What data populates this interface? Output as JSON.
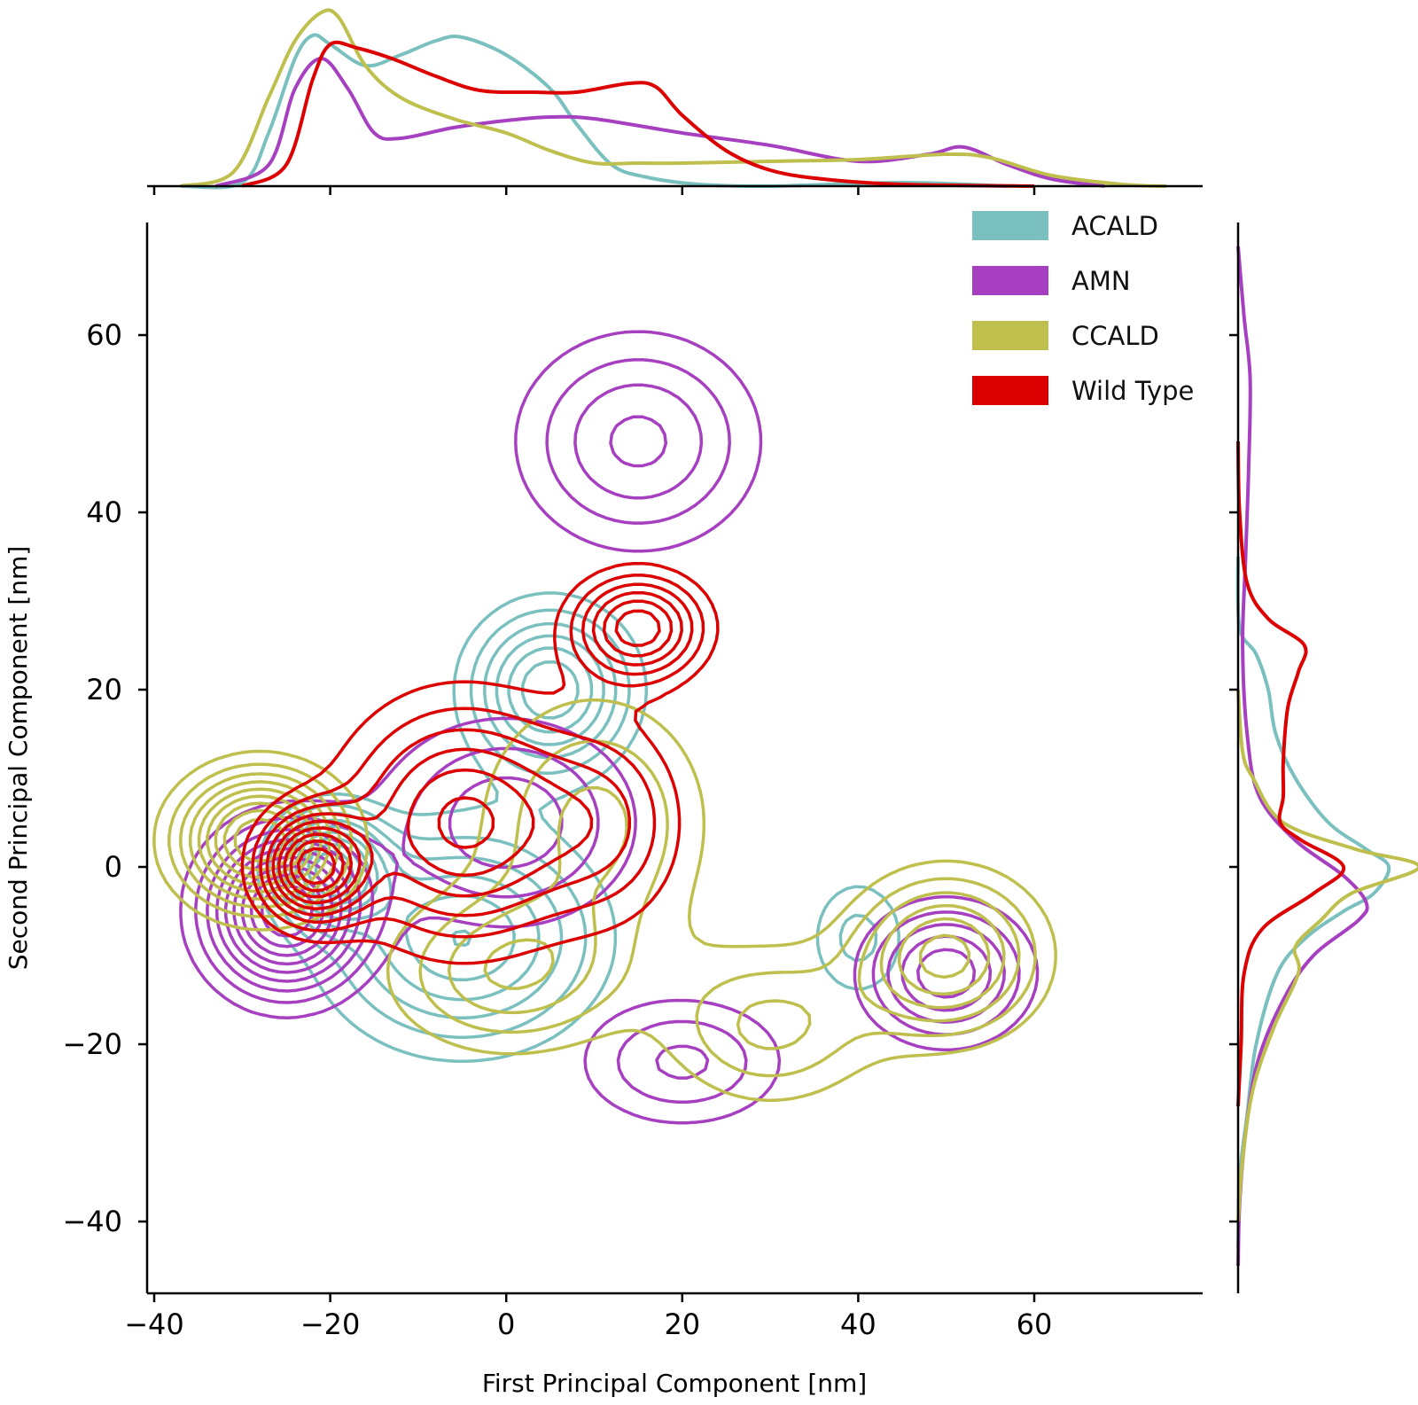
{
  "chart_data": {
    "type": "kde",
    "xlabel": "First Principal Component [nm]",
    "ylabel": "Second Principal Component [nm]",
    "xlim": [
      -41,
      79
    ],
    "ylim": [
      -48,
      73
    ],
    "xticks": [
      -40,
      -20,
      0,
      20,
      40,
      60
    ],
    "yticks": [
      -40,
      -20,
      0,
      20,
      40,
      60
    ],
    "xtick_labels": [
      "−40",
      "−20",
      "0",
      "20",
      "40",
      "60"
    ],
    "ytick_labels": [
      "−40",
      "−20",
      "0",
      "20",
      "40",
      "60"
    ],
    "legend_position": "top-right",
    "series": [
      {
        "name": "ACALD",
        "color": "#79c0bf",
        "modes": [
          {
            "x": -20,
            "y": 0,
            "sx": 4,
            "sy": 4,
            "w": 1.0
          },
          {
            "x": 5,
            "y": 20,
            "sx": 6,
            "sy": 6,
            "w": 0.8
          },
          {
            "x": -5,
            "y": -8,
            "sx": 10,
            "sy": 8,
            "w": 0.7
          },
          {
            "x": 40,
            "y": -8,
            "sx": 4,
            "sy": 5,
            "w": 0.3
          }
        ],
        "marginal_x": [
          [
            -37,
            0
          ],
          [
            -30,
            0.02
          ],
          [
            -27,
            0.3
          ],
          [
            -24,
            0.72
          ],
          [
            -22,
            0.85
          ],
          [
            -20,
            0.8
          ],
          [
            -16,
            0.68
          ],
          [
            -12,
            0.74
          ],
          [
            -8,
            0.82
          ],
          [
            -5,
            0.84
          ],
          [
            0,
            0.74
          ],
          [
            5,
            0.55
          ],
          [
            8,
            0.35
          ],
          [
            12,
            0.12
          ],
          [
            16,
            0.05
          ],
          [
            22,
            0.01
          ],
          [
            30,
            0
          ],
          [
            45,
            0.02
          ],
          [
            57,
            0
          ]
        ],
        "marginal_y": [
          [
            -43,
            0
          ],
          [
            -35,
            0.01
          ],
          [
            -28,
            0.06
          ],
          [
            -20,
            0.12
          ],
          [
            -12,
            0.26
          ],
          [
            -8,
            0.45
          ],
          [
            -5,
            0.7
          ],
          [
            -3,
            0.9
          ],
          [
            0,
            1.0
          ],
          [
            2,
            0.85
          ],
          [
            5,
            0.6
          ],
          [
            10,
            0.38
          ],
          [
            15,
            0.25
          ],
          [
            20,
            0.2
          ],
          [
            24,
            0.12
          ],
          [
            27,
            0.01
          ],
          [
            35,
            0
          ]
        ]
      },
      {
        "name": "AMN",
        "color": "#a640c0",
        "modes": [
          {
            "x": -25,
            "y": -5,
            "sx": 6,
            "sy": 6,
            "w": 1.0
          },
          {
            "x": 50,
            "y": -12,
            "sx": 6,
            "sy": 5,
            "w": 0.6
          },
          {
            "x": 15,
            "y": 48,
            "sx": 9,
            "sy": 8,
            "w": 0.45
          },
          {
            "x": 20,
            "y": -22,
            "sx": 8,
            "sy": 5,
            "w": 0.35
          },
          {
            "x": 0,
            "y": 5,
            "sx": 10,
            "sy": 8,
            "w": 0.4
          }
        ],
        "marginal_x": [
          [
            -33,
            0
          ],
          [
            -27,
            0.12
          ],
          [
            -24,
            0.55
          ],
          [
            -21,
            0.72
          ],
          [
            -18,
            0.55
          ],
          [
            -15,
            0.3
          ],
          [
            -12,
            0.27
          ],
          [
            -6,
            0.33
          ],
          [
            0,
            0.37
          ],
          [
            5,
            0.39
          ],
          [
            10,
            0.38
          ],
          [
            20,
            0.3
          ],
          [
            30,
            0.23
          ],
          [
            40,
            0.14
          ],
          [
            48,
            0.18
          ],
          [
            52,
            0.22
          ],
          [
            57,
            0.12
          ],
          [
            62,
            0.04
          ],
          [
            68,
            0
          ]
        ],
        "marginal_y": [
          [
            -45,
            0
          ],
          [
            -38,
            0.01
          ],
          [
            -30,
            0.05
          ],
          [
            -22,
            0.13
          ],
          [
            -15,
            0.3
          ],
          [
            -10,
            0.5
          ],
          [
            -6,
            0.8
          ],
          [
            -4,
            0.85
          ],
          [
            -1,
            0.7
          ],
          [
            3,
            0.38
          ],
          [
            8,
            0.14
          ],
          [
            15,
            0.06
          ],
          [
            25,
            0.03
          ],
          [
            35,
            0.05
          ],
          [
            45,
            0.07
          ],
          [
            55,
            0.08
          ],
          [
            62,
            0.04
          ],
          [
            70,
            0
          ]
        ]
      },
      {
        "name": "CCALD",
        "color": "#bfbf4d",
        "modes": [
          {
            "x": -28,
            "y": 3,
            "sx": 6,
            "sy": 5,
            "w": 1.0
          },
          {
            "x": 50,
            "y": -10,
            "sx": 7,
            "sy": 6,
            "w": 0.65
          },
          {
            "x": 10,
            "y": 5,
            "sx": 9,
            "sy": 10,
            "w": 0.35
          },
          {
            "x": 0,
            "y": -12,
            "sx": 9,
            "sy": 6,
            "w": 0.4
          },
          {
            "x": 30,
            "y": -18,
            "sx": 8,
            "sy": 6,
            "w": 0.35
          }
        ],
        "marginal_x": [
          [
            -37,
            0
          ],
          [
            -31,
            0.08
          ],
          [
            -27,
            0.5
          ],
          [
            -24,
            0.82
          ],
          [
            -21,
            0.98
          ],
          [
            -19,
            0.95
          ],
          [
            -16,
            0.68
          ],
          [
            -12,
            0.5
          ],
          [
            -6,
            0.38
          ],
          [
            0,
            0.3
          ],
          [
            5,
            0.2
          ],
          [
            10,
            0.13
          ],
          [
            15,
            0.13
          ],
          [
            20,
            0.13
          ],
          [
            30,
            0.14
          ],
          [
            40,
            0.15
          ],
          [
            50,
            0.18
          ],
          [
            55,
            0.16
          ],
          [
            62,
            0.06
          ],
          [
            70,
            0.01
          ],
          [
            75,
            0
          ]
        ],
        "marginal_y": [
          [
            -40,
            0
          ],
          [
            -33,
            0.03
          ],
          [
            -25,
            0.1
          ],
          [
            -18,
            0.24
          ],
          [
            -12,
            0.4
          ],
          [
            -9,
            0.38
          ],
          [
            -6,
            0.55
          ],
          [
            -3,
            0.75
          ],
          [
            0,
            1.2
          ],
          [
            2,
            0.78
          ],
          [
            5,
            0.3
          ],
          [
            10,
            0.1
          ],
          [
            13,
            0.03
          ],
          [
            20,
            0
          ]
        ]
      },
      {
        "name": "Wild Type",
        "color": "#dd0000",
        "modes": [
          {
            "x": -22,
            "y": 0,
            "sx": 4,
            "sy": 4,
            "w": 1.0
          },
          {
            "x": 15,
            "y": 27,
            "sx": 5,
            "sy": 4,
            "w": 0.75
          },
          {
            "x": -5,
            "y": 5,
            "sx": 9,
            "sy": 9,
            "w": 0.7
          },
          {
            "x": 12,
            "y": 5,
            "sx": 6,
            "sy": 8,
            "w": 0.3
          }
        ],
        "marginal_x": [
          [
            -30,
            0
          ],
          [
            -25,
            0.12
          ],
          [
            -22,
            0.6
          ],
          [
            -20,
            0.8
          ],
          [
            -17,
            0.78
          ],
          [
            -13,
            0.72
          ],
          [
            -8,
            0.62
          ],
          [
            -3,
            0.54
          ],
          [
            3,
            0.53
          ],
          [
            8,
            0.53
          ],
          [
            14,
            0.58
          ],
          [
            17,
            0.56
          ],
          [
            20,
            0.4
          ],
          [
            25,
            0.2
          ],
          [
            30,
            0.09
          ],
          [
            36,
            0.04
          ],
          [
            45,
            0.01
          ],
          [
            60,
            0
          ]
        ],
        "marginal_y": [
          [
            -27,
            0
          ],
          [
            -20,
            0.02
          ],
          [
            -12,
            0.04
          ],
          [
            -7,
            0.16
          ],
          [
            -3,
            0.5
          ],
          [
            0,
            0.7
          ],
          [
            3,
            0.42
          ],
          [
            5,
            0.28
          ],
          [
            8,
            0.3
          ],
          [
            12,
            0.3
          ],
          [
            18,
            0.33
          ],
          [
            22,
            0.4
          ],
          [
            25,
            0.44
          ],
          [
            28,
            0.2
          ],
          [
            32,
            0.06
          ],
          [
            40,
            0.01
          ],
          [
            48,
            0
          ]
        ]
      }
    ]
  }
}
